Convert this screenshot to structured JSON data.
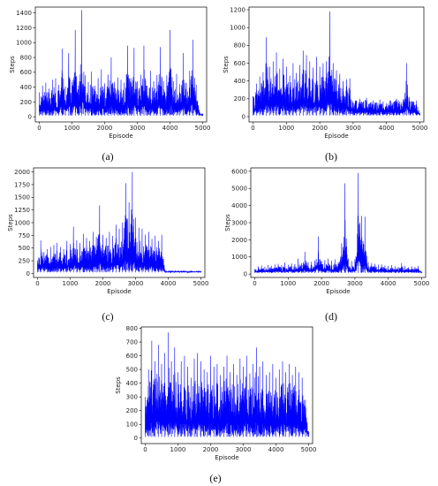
{
  "charts": [
    {
      "panel_label": "(a)",
      "chart_data": {
        "type": "line",
        "title": "",
        "xlabel": "Episode",
        "ylabel": "Steps",
        "xlim": [
          -120,
          5120
        ],
        "ylim": [
          -70,
          1480
        ],
        "x_ticks": [
          0,
          1000,
          2000,
          3000,
          4000,
          5000
        ],
        "x_tick_labels": [
          "0",
          "1000",
          "2000",
          "3000",
          "4000",
          "5000"
        ],
        "y_ticks": [
          0,
          200,
          400,
          600,
          800,
          1000,
          1200,
          1400
        ],
        "y_tick_labels": [
          "0",
          "200",
          "400",
          "600",
          "800",
          "1000",
          "1200",
          "1400"
        ],
        "series": [
          {
            "color": "#0000ff",
            "x": [
              0,
              100,
              200,
              300,
              400,
              500,
              600,
              700,
              800,
              900,
              1000,
              1100,
              1200,
              1300,
              1400,
              1500,
              1600,
              1700,
              1800,
              1900,
              2000,
              2100,
              2200,
              2300,
              2400,
              2500,
              2600,
              2700,
              2800,
              2900,
              3000,
              3100,
              3200,
              3300,
              3400,
              3500,
              3600,
              3700,
              3800,
              3900,
              4000,
              4100,
              4200,
              4300,
              4400,
              4500,
              4600,
              4700,
              4800,
              4900,
              5000
            ],
            "y": [
              330,
              420,
              460,
              380,
              500,
              520,
              430,
              920,
              410,
              860,
              470,
              1170,
              420,
              1440,
              560,
              470,
              610,
              420,
              520,
              640,
              450,
              570,
              800,
              470,
              530,
              500,
              460,
              960,
              520,
              930,
              480,
              570,
              960,
              420,
              620,
              480,
              560,
              940,
              480,
              560,
              1170,
              480,
              580,
              440,
              860,
              460,
              620,
              1040,
              430,
              60,
              40
            ]
          }
        ]
      }
    },
    {
      "panel_label": "(b)",
      "chart_data": {
        "type": "line",
        "title": "",
        "xlabel": "Episode",
        "ylabel": "Steps",
        "xlim": [
          -120,
          5120
        ],
        "ylim": [
          -60,
          1230
        ],
        "x_ticks": [
          0,
          1000,
          2000,
          3000,
          4000,
          5000
        ],
        "x_tick_labels": [
          "0",
          "1000",
          "2000",
          "3000",
          "4000",
          "5000"
        ],
        "y_ticks": [
          0,
          200,
          400,
          600,
          800,
          1000,
          1200
        ],
        "y_tick_labels": [
          "0",
          "200",
          "400",
          "600",
          "800",
          "1000",
          "1200"
        ],
        "series": [
          {
            "color": "#0000ff",
            "x": [
              0,
              100,
              200,
              300,
              400,
              500,
              600,
              700,
              800,
              900,
              1000,
              1100,
              1200,
              1300,
              1400,
              1500,
              1600,
              1700,
              1800,
              1900,
              2000,
              2100,
              2200,
              2300,
              2400,
              2500,
              2600,
              2700,
              2800,
              2900,
              3000,
              3100,
              3200,
              3300,
              3400,
              3500,
              3600,
              3700,
              3800,
              3900,
              4000,
              4100,
              4200,
              4300,
              4400,
              4500,
              4600,
              4700,
              4800,
              4900,
              5000
            ],
            "y": [
              230,
              370,
              450,
              500,
              890,
              560,
              620,
              720,
              540,
              650,
              560,
              460,
              600,
              490,
              580,
              740,
              690,
              620,
              550,
              670,
              560,
              600,
              620,
              1180,
              600,
              520,
              480,
              400,
              420,
              430,
              160,
              180,
              200,
              170,
              210,
              150,
              180,
              160,
              190,
              170,
              150,
              180,
              160,
              200,
              170,
              190,
              600,
              170,
              160,
              180,
              40
            ]
          }
        ]
      }
    },
    {
      "panel_label": "(c)",
      "chart_data": {
        "type": "line",
        "title": "",
        "xlabel": "Episode",
        "ylabel": "Steps",
        "xlim": [
          -120,
          5120
        ],
        "ylim": [
          -80,
          2080
        ],
        "x_ticks": [
          0,
          1000,
          2000,
          3000,
          4000,
          5000
        ],
        "x_tick_labels": [
          "0",
          "1000",
          "2000",
          "3000",
          "4000",
          "5000"
        ],
        "y_ticks": [
          0,
          250,
          500,
          750,
          1000,
          1250,
          1500,
          1750,
          2000
        ],
        "y_tick_labels": [
          "0",
          "250",
          "500",
          "750",
          "1000",
          "1250",
          "1500",
          "1750",
          "2000"
        ],
        "series": [
          {
            "color": "#0000ff",
            "x": [
              0,
              100,
              200,
              300,
              400,
              500,
              600,
              700,
              800,
              900,
              1000,
              1100,
              1200,
              1300,
              1400,
              1500,
              1600,
              1700,
              1800,
              1900,
              2000,
              2100,
              2200,
              2300,
              2400,
              2500,
              2600,
              2700,
              2800,
              2900,
              3000,
              3100,
              3200,
              3300,
              3400,
              3500,
              3600,
              3700,
              3800,
              3900,
              4000,
              4100,
              4200,
              4300,
              4400,
              4500,
              4600,
              4700,
              4800,
              4900,
              5000
            ],
            "y": [
              260,
              650,
              420,
              480,
              520,
              560,
              600,
              520,
              480,
              640,
              580,
              920,
              650,
              600,
              780,
              700,
              640,
              820,
              720,
              1340,
              760,
              700,
              820,
              740,
              960,
              880,
              1000,
              1780,
              1400,
              2000,
              1100,
              900,
              880,
              760,
              820,
              680,
              740,
              640,
              760,
              60,
              50,
              50,
              50,
              40,
              50,
              50,
              40,
              50,
              40,
              50,
              40
            ]
          }
        ]
      }
    },
    {
      "panel_label": "(d)",
      "chart_data": {
        "type": "line",
        "title": "",
        "xlabel": "Episode",
        "ylabel": "Steps",
        "xlim": [
          -120,
          5120
        ],
        "ylim": [
          -200,
          6200
        ],
        "x_ticks": [
          0,
          1000,
          2000,
          3000,
          4000,
          5000
        ],
        "x_tick_labels": [
          "0",
          "1000",
          "2000",
          "3000",
          "4000",
          "5000"
        ],
        "y_ticks": [
          0,
          1000,
          2000,
          3000,
          4000,
          5000,
          6000
        ],
        "y_tick_labels": [
          "0",
          "1000",
          "2000",
          "3000",
          "4000",
          "5000",
          "6000"
        ],
        "series": [
          {
            "color": "#0000ff",
            "x": [
              0,
              100,
              200,
              300,
              400,
              500,
              600,
              700,
              800,
              900,
              1000,
              1100,
              1200,
              1300,
              1400,
              1500,
              1600,
              1700,
              1800,
              1900,
              2000,
              2100,
              2200,
              2300,
              2400,
              2500,
              2600,
              2700,
              2800,
              2900,
              3000,
              3100,
              3200,
              3300,
              3400,
              3500,
              3600,
              3700,
              3800,
              3900,
              4000,
              4100,
              4200,
              4300,
              4400,
              4500,
              4600,
              4700,
              4800,
              4900,
              5000
            ],
            "y": [
              300,
              450,
              500,
              420,
              520,
              480,
              560,
              600,
              520,
              680,
              540,
              620,
              580,
              900,
              640,
              1300,
              700,
              720,
              800,
              2200,
              760,
              820,
              900,
              780,
              860,
              700,
              1800,
              5300,
              900,
              760,
              880,
              5900,
              3400,
              3350,
              700,
              640,
              600,
              550,
              560,
              500,
              480,
              520,
              460,
              420,
              640,
              480,
              400,
              450,
              420,
              480,
              120
            ]
          }
        ]
      }
    },
    {
      "panel_label": "(e)",
      "chart_data": {
        "type": "line",
        "title": "",
        "xlabel": "Episode",
        "ylabel": "Steps",
        "xlim": [
          -120,
          5120
        ],
        "ylim": [
          -40,
          810
        ],
        "x_ticks": [
          0,
          1000,
          2000,
          3000,
          4000,
          5000
        ],
        "x_tick_labels": [
          "0",
          "1000",
          "2000",
          "3000",
          "4000",
          "5000"
        ],
        "y_ticks": [
          0,
          100,
          200,
          300,
          400,
          500,
          600,
          700,
          800
        ],
        "y_tick_labels": [
          "0",
          "100",
          "200",
          "300",
          "400",
          "500",
          "600",
          "700",
          "800"
        ],
        "series": [
          {
            "color": "#0000ff",
            "x": [
              0,
              100,
              200,
              300,
              400,
              500,
              600,
              700,
              800,
              900,
              1000,
              1100,
              1200,
              1300,
              1400,
              1500,
              1600,
              1700,
              1800,
              1900,
              2000,
              2100,
              2200,
              2300,
              2400,
              2500,
              2600,
              2700,
              2800,
              2900,
              3000,
              3100,
              3200,
              3300,
              3400,
              3500,
              3600,
              3700,
              3800,
              3900,
              4000,
              4100,
              4200,
              4300,
              4400,
              4500,
              4600,
              4700,
              4800,
              4900,
              5000
            ],
            "y": [
              300,
              500,
              710,
              560,
              680,
              540,
              620,
              770,
              560,
              660,
              480,
              560,
              600,
              520,
              440,
              580,
              620,
              560,
              500,
              480,
              600,
              520,
              540,
              460,
              520,
              600,
              480,
              540,
              460,
              580,
              520,
              600,
              470,
              540,
              660,
              520,
              560,
              460,
              480,
              540,
              440,
              500,
              560,
              480,
              540,
              460,
              520,
              480,
              440,
              280,
              50
            ]
          }
        ]
      }
    }
  ]
}
